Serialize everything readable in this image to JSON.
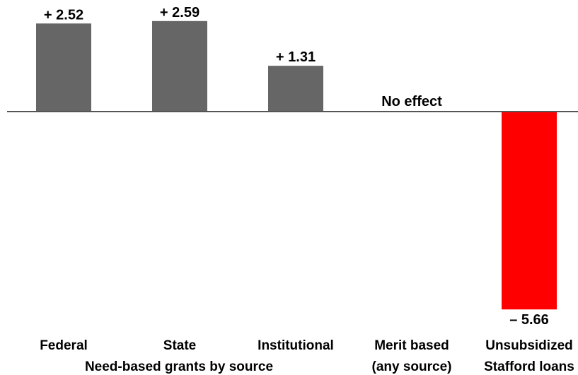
{
  "chart_data": {
    "type": "bar",
    "categories": [
      "Federal",
      "State",
      "Institutional",
      "Merit based",
      "Unsubsidized"
    ],
    "category_second_lines": [
      "",
      "",
      "",
      "(any source)",
      "Stafford loans"
    ],
    "values": [
      2.52,
      2.59,
      1.31,
      0,
      -5.66
    ],
    "value_labels": [
      "+ 2.52",
      "+ 2.59",
      "+ 1.31",
      "No effect",
      "– 5.66"
    ],
    "group_label": "Need-based grants by source",
    "colors": [
      "#666666",
      "#666666",
      "#666666",
      "#666666",
      "#ff0000"
    ],
    "baseline_color": "#555555",
    "ylim": [
      -5.66,
      2.59
    ]
  }
}
